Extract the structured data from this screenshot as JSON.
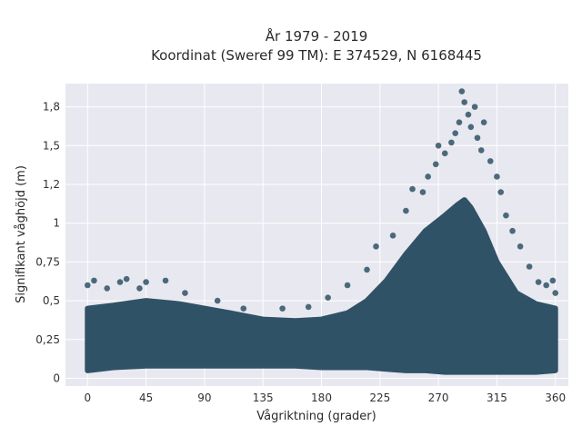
{
  "chart_data": {
    "type": "scatter",
    "title_line1": "År 1979 - 2019",
    "title_line2": "Koordinat (Sweref 99 TM): E 374529, N 6168445",
    "xlabel": "Vågriktning (grader)",
    "ylabel": "Signifikant våghöjd (m)",
    "xlim": [
      -17,
      370
    ],
    "ylim": [
      -0.05,
      1.9
    ],
    "xticks": [
      0,
      45,
      90,
      135,
      180,
      225,
      270,
      315,
      360
    ],
    "xtick_labels": [
      "0",
      "45",
      "90",
      "135",
      "180",
      "225",
      "270",
      "315",
      "360"
    ],
    "yticks": [
      0,
      0.25,
      0.5,
      0.75,
      1,
      1.25,
      1.5,
      1.75
    ],
    "ytick_labels": [
      "0",
      "0,25",
      "0,5",
      "0,75",
      "1",
      "1,2",
      "1,5",
      "1,8"
    ],
    "grid": true,
    "series_color": "#2f5266",
    "plot_background": "#e8e8f0",
    "dense_envelope": {
      "x": [
        0,
        20,
        45,
        70,
        90,
        110,
        135,
        160,
        180,
        200,
        215,
        230,
        245,
        260,
        275,
        285,
        290,
        295,
        305,
        315,
        330,
        345,
        360
      ],
      "lower": [
        0.05,
        0.07,
        0.08,
        0.08,
        0.08,
        0.08,
        0.08,
        0.08,
        0.07,
        0.07,
        0.07,
        0.06,
        0.05,
        0.05,
        0.04,
        0.04,
        0.04,
        0.04,
        0.04,
        0.04,
        0.04,
        0.04,
        0.05
      ],
      "upper": [
        0.45,
        0.47,
        0.5,
        0.48,
        0.45,
        0.42,
        0.38,
        0.37,
        0.38,
        0.42,
        0.5,
        0.63,
        0.8,
        0.95,
        1.05,
        1.12,
        1.15,
        1.1,
        0.95,
        0.75,
        0.55,
        0.48,
        0.45
      ]
    },
    "outliers": [
      {
        "x": 0,
        "y": 0.6
      },
      {
        "x": 5,
        "y": 0.63
      },
      {
        "x": 15,
        "y": 0.58
      },
      {
        "x": 25,
        "y": 0.62
      },
      {
        "x": 30,
        "y": 0.64
      },
      {
        "x": 40,
        "y": 0.58
      },
      {
        "x": 45,
        "y": 0.62
      },
      {
        "x": 60,
        "y": 0.63
      },
      {
        "x": 75,
        "y": 0.55
      },
      {
        "x": 100,
        "y": 0.5
      },
      {
        "x": 120,
        "y": 0.45
      },
      {
        "x": 150,
        "y": 0.45
      },
      {
        "x": 170,
        "y": 0.46
      },
      {
        "x": 185,
        "y": 0.52
      },
      {
        "x": 200,
        "y": 0.6
      },
      {
        "x": 215,
        "y": 0.7
      },
      {
        "x": 222,
        "y": 0.85
      },
      {
        "x": 235,
        "y": 0.92
      },
      {
        "x": 245,
        "y": 1.08
      },
      {
        "x": 250,
        "y": 1.22
      },
      {
        "x": 258,
        "y": 1.2
      },
      {
        "x": 262,
        "y": 1.3
      },
      {
        "x": 268,
        "y": 1.38
      },
      {
        "x": 270,
        "y": 1.5
      },
      {
        "x": 275,
        "y": 1.45
      },
      {
        "x": 280,
        "y": 1.52
      },
      {
        "x": 283,
        "y": 1.58
      },
      {
        "x": 286,
        "y": 1.65
      },
      {
        "x": 288,
        "y": 1.85
      },
      {
        "x": 290,
        "y": 1.78
      },
      {
        "x": 293,
        "y": 1.7
      },
      {
        "x": 295,
        "y": 1.62
      },
      {
        "x": 298,
        "y": 1.75
      },
      {
        "x": 300,
        "y": 1.55
      },
      {
        "x": 303,
        "y": 1.47
      },
      {
        "x": 305,
        "y": 1.65
      },
      {
        "x": 310,
        "y": 1.4
      },
      {
        "x": 315,
        "y": 1.3
      },
      {
        "x": 318,
        "y": 1.2
      },
      {
        "x": 322,
        "y": 1.05
      },
      {
        "x": 327,
        "y": 0.95
      },
      {
        "x": 333,
        "y": 0.85
      },
      {
        "x": 340,
        "y": 0.72
      },
      {
        "x": 347,
        "y": 0.62
      },
      {
        "x": 353,
        "y": 0.6
      },
      {
        "x": 358,
        "y": 0.63
      },
      {
        "x": 360,
        "y": 0.55
      }
    ]
  }
}
